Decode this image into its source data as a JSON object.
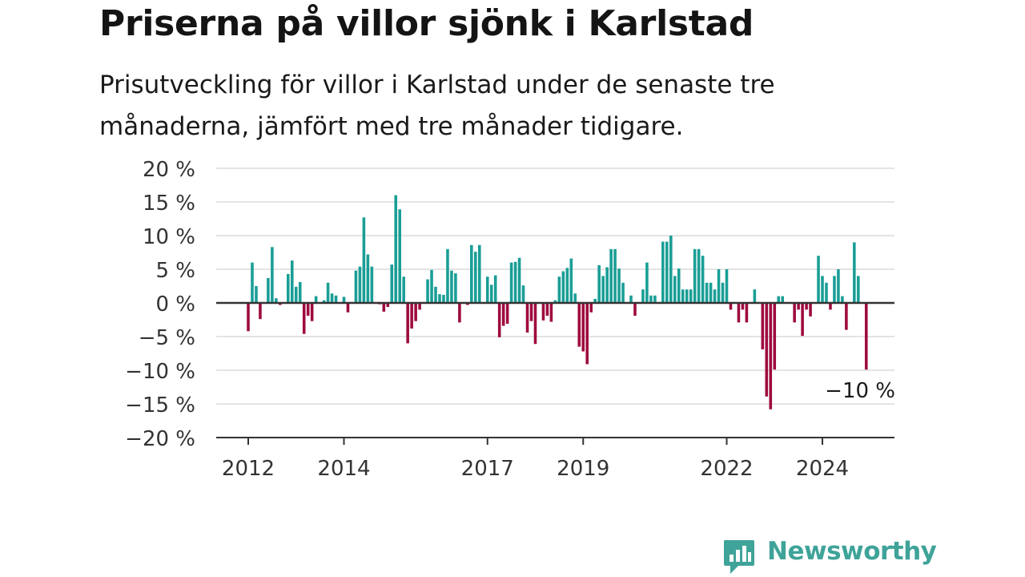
{
  "header": {
    "title": "Priserna på villor sjönk i Karlstad",
    "subtitle": "Prisutveckling för villor i Karlstad under de senaste tre månaderna, jämfört med tre månader tidigare."
  },
  "brand": {
    "name": "Newsworthy",
    "color": "#3fa399"
  },
  "chart_data": {
    "type": "bar",
    "title": "Priserna på villor sjönk i Karlstad",
    "subtitle": "Prisutveckling för villor i Karlstad under de senaste tre månaderna, jämfört med tre månader tidigare.",
    "x_start": "2012-01",
    "x_step": "month",
    "ylim": [
      -20,
      20
    ],
    "yticks": [
      20,
      15,
      10,
      5,
      0,
      -5,
      -10,
      -15,
      -20
    ],
    "ytick_labels": [
      "20 %",
      "15 %",
      "10 %",
      "5 %",
      "0 %",
      "−5 %",
      "−10 %",
      "−15 %",
      "−20 %"
    ],
    "xticks": [
      "2012",
      "2014",
      "2017",
      "2019",
      "2022",
      "2024"
    ],
    "grid": true,
    "colors": {
      "positive": "#1a9e96",
      "negative": "#9e0b3f",
      "grid": "#dcdcdc",
      "zero": "#333333"
    },
    "annotation": {
      "label": "−10 %",
      "value": -10
    },
    "values": [
      -4.2,
      6.0,
      2.5,
      -2.4,
      0,
      3.7,
      8.3,
      0.7,
      -0.3,
      0,
      4.3,
      6.3,
      2.4,
      3.1,
      -4.6,
      -1.9,
      -2.7,
      1.0,
      0,
      0.4,
      3.0,
      1.4,
      1.1,
      0,
      0.9,
      -1.4,
      0,
      4.8,
      5.4,
      12.7,
      7.2,
      5.4,
      0,
      -0.2,
      -1.3,
      -0.6,
      5.7,
      16.0,
      13.9,
      3.9,
      -6.0,
      -3.8,
      -2.7,
      -1.0,
      0,
      3.5,
      4.9,
      2.4,
      1.3,
      1.2,
      8.0,
      4.8,
      4.4,
      -2.9,
      0,
      -0.3,
      8.6,
      7.6,
      8.6,
      0,
      3.9,
      2.7,
      4.1,
      -5.1,
      -3.4,
      -3.1,
      6.0,
      6.1,
      6.7,
      2.6,
      -4.4,
      -2.7,
      -6.1,
      0,
      -2.6,
      -1.9,
      -2.8,
      0.4,
      3.9,
      4.7,
      5.2,
      6.6,
      1.4,
      -6.5,
      -7.2,
      -9.1,
      -1.4,
      0.6,
      5.6,
      4.0,
      5.3,
      8.0,
      8.0,
      5.1,
      3.0,
      0,
      1.1,
      -1.9,
      0,
      2.0,
      6.0,
      1.1,
      1.1,
      0,
      9.1,
      9.1,
      10.0,
      4.0,
      5.1,
      2.0,
      2.0,
      2.0,
      8.0,
      8.0,
      7.0,
      3.0,
      3.0,
      2.0,
      5.0,
      3.0,
      5.0,
      -1.0,
      0,
      -2.9,
      -1.0,
      -2.9,
      0,
      2.0,
      0,
      -6.9,
      -13.9,
      -15.8,
      -9.9,
      1.0,
      1.0,
      0,
      0,
      -2.9,
      -1.0,
      -4.9,
      -1.0,
      -2.0,
      0,
      7.0,
      4.0,
      3.0,
      -1.0,
      4.0,
      5.0,
      1.0,
      -4.0,
      0,
      9.0,
      4.0,
      0,
      -9.9
    ]
  }
}
